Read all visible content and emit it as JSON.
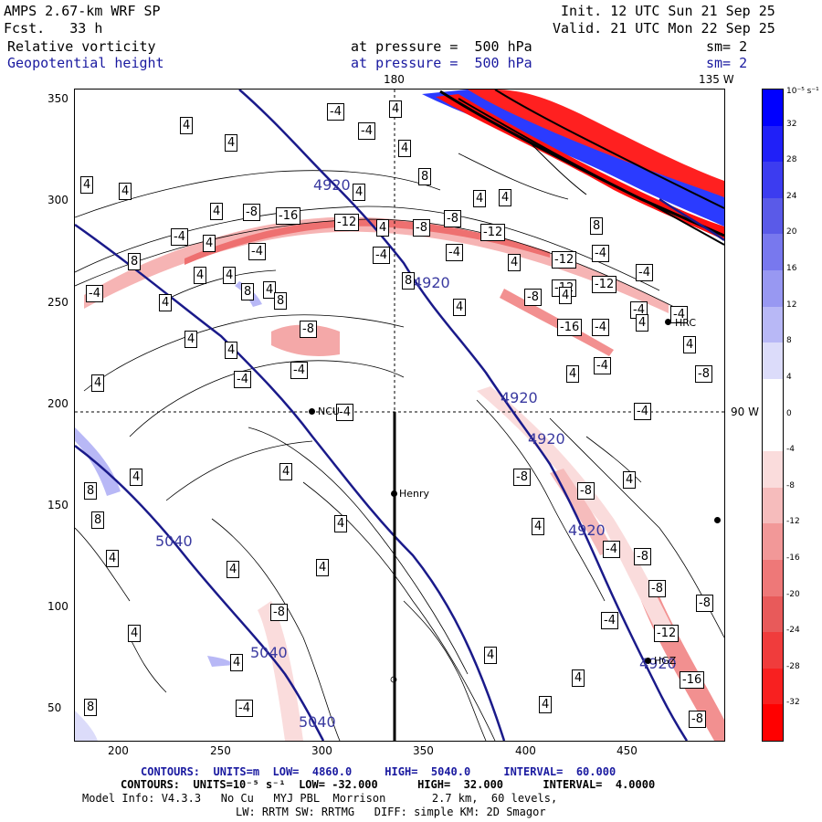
{
  "header": {
    "model": "AMPS 2.67-km WRF SP",
    "fcst": "Fcst.   33 h",
    "init": "Init. 12 UTC Sun 21 Sep 25",
    "valid": "Valid. 21 UTC Mon 22 Sep 25",
    "field1": "Relative vorticity",
    "field1_level": "at pressure =  500 hPa",
    "field1_sm": "sm= 2",
    "field2": "Geopotential height",
    "field2_level": "at pressure =  500 hPa",
    "field2_sm": "sm= 2"
  },
  "map": {
    "lon_labels": [
      "180",
      "135 W",
      "90 W"
    ],
    "x_ticks": [
      "200",
      "250",
      "300",
      "350",
      "400",
      "450"
    ],
    "y_ticks": [
      "350",
      "300",
      "250",
      "200",
      "150",
      "100",
      "50"
    ],
    "stations": [
      "NCU",
      "Henry",
      "HRC",
      "HGZ"
    ],
    "height_labels": [
      "4920",
      "4920",
      "4920",
      "4920",
      "4920",
      "4920",
      "5040",
      "5040",
      "5040"
    ],
    "vort_labels": [
      "4",
      "8",
      "-4",
      "-8",
      "-12",
      "-16"
    ]
  },
  "colorbar": {
    "unit": "10⁻⁵ s⁻¹",
    "labels": [
      "32",
      "28",
      "24",
      "20",
      "16",
      "12",
      "8",
      "4",
      "0",
      "-4",
      "-8",
      "-12",
      "-16",
      "-20",
      "-24",
      "-28",
      "-32"
    ],
    "colors": [
      "#0000ff",
      "#2020f8",
      "#3c3cf0",
      "#5a5ae8",
      "#7878ee",
      "#9898f2",
      "#b8b8f6",
      "#dcdcfa",
      "#ffffff",
      "#ffffff",
      "#fadcdc",
      "#f6bcbc",
      "#f29898",
      "#ee7878",
      "#e85a5a",
      "#f03c3c",
      "#f82020",
      "#ff0000"
    ]
  },
  "footer": {
    "line1": "CONTOURS:  UNITS=m  LOW=  4860.0     HIGH=  5040.0     INTERVAL=  60.000",
    "line2": "CONTOURS:  UNITS=10⁻⁵ s⁻¹  LOW= -32.000      HIGH=  32.000      INTERVAL=  4.0000",
    "line3": "Model Info: V4.3.3   No Cu   MYJ PBL  Morrison       2.7 km,  60 levels,",
    "line4": "LW: RRTM SW: RRTMG   DIFF: simple KM: 2D Smagor"
  }
}
